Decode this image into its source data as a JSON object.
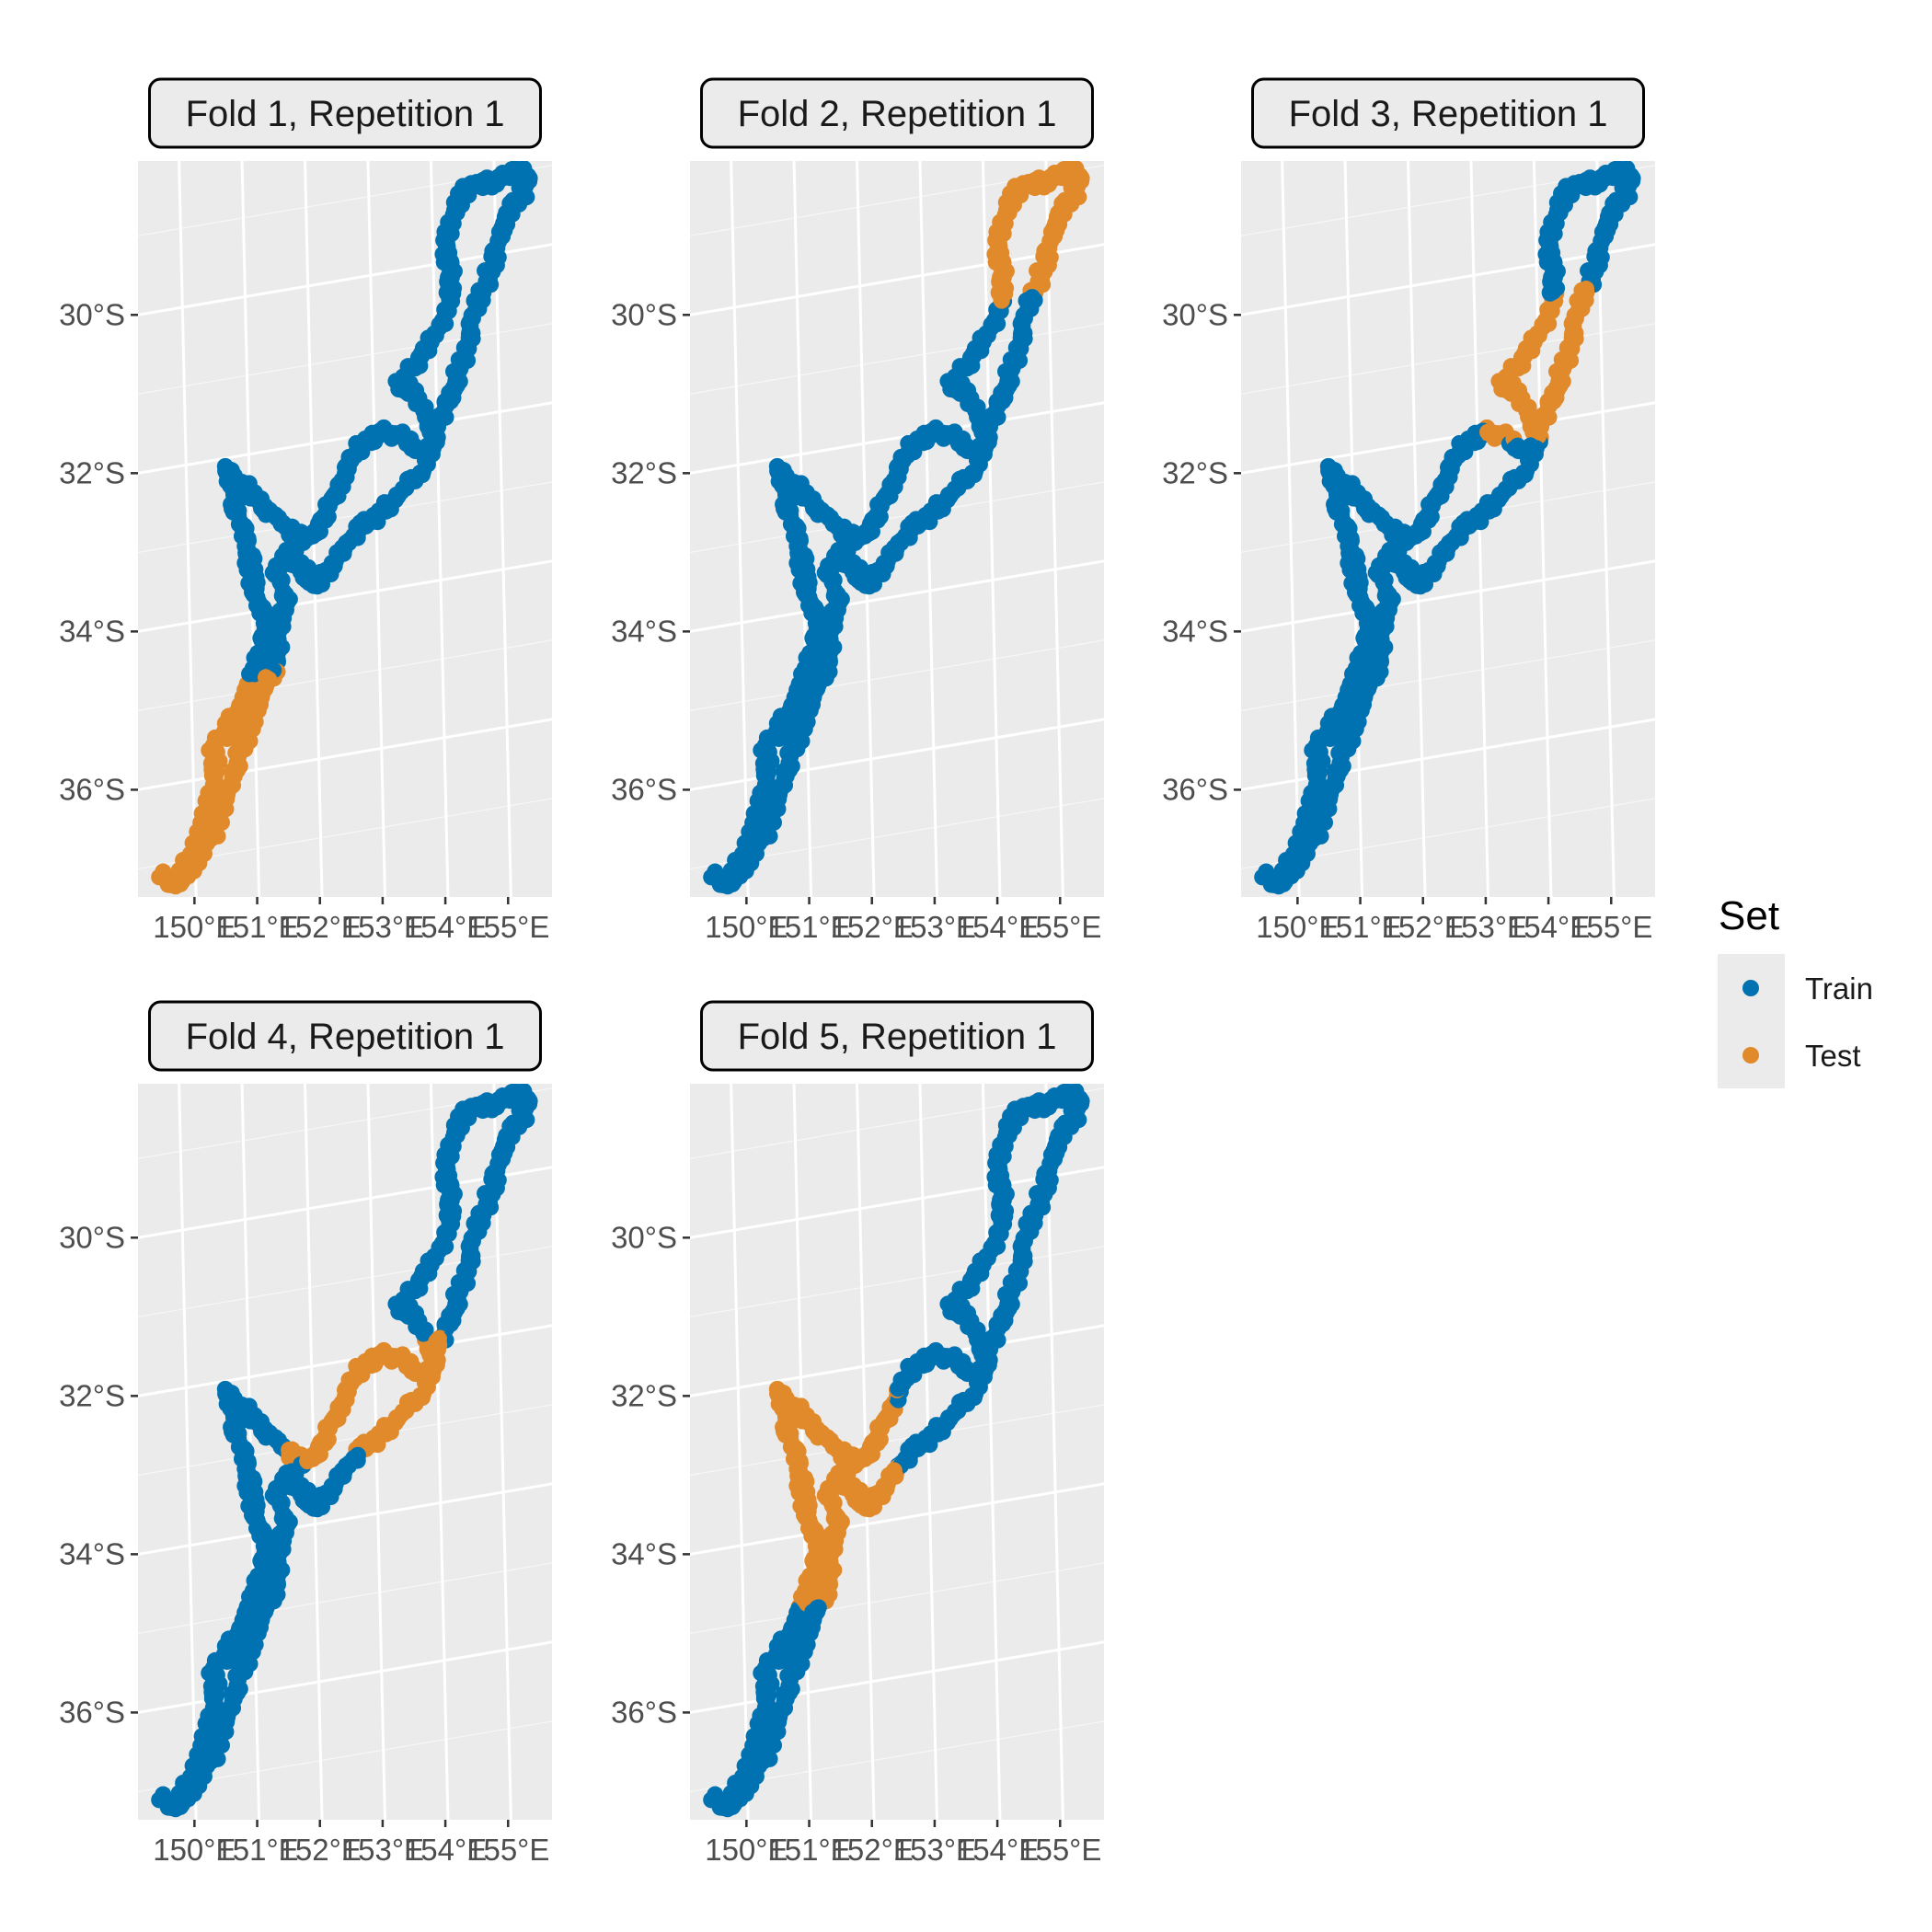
{
  "chart_data": {
    "type": "scatter",
    "subtype": "faceted map of spatial cross-validation folds",
    "coordinate_system": "projected lon/lat (graticule slightly rotated)",
    "xlim": [
      149.1,
      155.7
    ],
    "ylim": [
      -37.8,
      -28.5
    ],
    "x_ticks": [
      150,
      151,
      152,
      153,
      154,
      155
    ],
    "x_tick_labels": [
      "150°E",
      "151°E",
      "152°E",
      "153°E",
      "154°E",
      "155°E"
    ],
    "y_ticks": [
      -30,
      -32,
      -34,
      -36
    ],
    "y_tick_labels": [
      "30°S",
      "32°S",
      "34°S",
      "36°S"
    ],
    "grid": true,
    "panel_background": "#ebebeb",
    "legend": {
      "title": "Set",
      "position": "right",
      "items": [
        {
          "label": "Train",
          "color": "#0072b2"
        },
        {
          "label": "Test",
          "color": "#e08a2c"
        }
      ]
    },
    "facets": [
      {
        "label": "Fold 1, Repetition 1",
        "test_lat_range": [
          -37.4,
          -34.8
        ]
      },
      {
        "label": "Fold 2, Repetition 1",
        "test_lat_range": [
          -30.5,
          -28.9
        ]
      },
      {
        "label": "Fold 3, Repetition 1",
        "test_lat_range": [
          -32.2,
          -30.4
        ]
      },
      {
        "label": "Fold 4, Repetition 1",
        "test_region": "lat -33.2 to -31.9, lon 151.5 to 154.0"
      },
      {
        "label": "Fold 5, Repetition 1",
        "test_region": "lat -34.9 to -32.1, lon 150.4 to 152.4"
      }
    ],
    "point_track": [
      [
        149.5,
        -37.15
      ],
      [
        149.7,
        -37.3
      ],
      [
        149.85,
        -37.1
      ],
      [
        150.0,
        -36.85
      ],
      [
        150.15,
        -36.55
      ],
      [
        150.25,
        -36.25
      ],
      [
        150.35,
        -35.95
      ],
      [
        150.3,
        -35.6
      ],
      [
        150.5,
        -35.45
      ],
      [
        150.7,
        -35.2
      ],
      [
        150.85,
        -34.95
      ],
      [
        151.0,
        -34.7
      ],
      [
        151.1,
        -34.45
      ],
      [
        151.15,
        -34.2
      ],
      [
        151.05,
        -33.95
      ],
      [
        150.95,
        -33.7
      ],
      [
        150.9,
        -33.45
      ],
      [
        150.85,
        -33.2
      ],
      [
        150.75,
        -32.9
      ],
      [
        150.65,
        -32.6
      ],
      [
        150.6,
        -32.35
      ],
      [
        150.55,
        -32.15
      ],
      [
        150.9,
        -32.5
      ],
      [
        151.2,
        -32.75
      ],
      [
        151.45,
        -33.0
      ],
      [
        151.7,
        -33.2
      ],
      [
        151.9,
        -33.15
      ],
      [
        152.1,
        -32.9
      ],
      [
        152.3,
        -32.6
      ],
      [
        152.5,
        -32.3
      ],
      [
        152.7,
        -32.1
      ],
      [
        152.95,
        -32.0
      ],
      [
        153.2,
        -32.05
      ],
      [
        153.45,
        -32.2
      ],
      [
        153.7,
        -32.4
      ],
      [
        153.85,
        -32.2
      ],
      [
        153.7,
        -31.9
      ],
      [
        153.5,
        -31.6
      ],
      [
        153.25,
        -31.4
      ],
      [
        153.55,
        -31.2
      ],
      [
        153.85,
        -30.9
      ],
      [
        154.05,
        -30.55
      ],
      [
        154.1,
        -30.2
      ],
      [
        154.0,
        -29.9
      ],
      [
        154.05,
        -29.6
      ],
      [
        154.15,
        -29.35
      ],
      [
        154.3,
        -29.15
      ],
      [
        154.5,
        -29.05
      ],
      [
        154.7,
        -29.1
      ],
      [
        154.95,
        -29.05
      ],
      [
        155.15,
        -29.0
      ],
      [
        155.3,
        -29.1
      ],
      [
        155.2,
        -29.35
      ],
      [
        154.95,
        -29.55
      ],
      [
        154.85,
        -29.85
      ],
      [
        154.75,
        -30.15
      ],
      [
        154.55,
        -30.5
      ],
      [
        154.4,
        -30.85
      ],
      [
        154.35,
        -31.15
      ],
      [
        154.2,
        -31.45
      ],
      [
        154.05,
        -31.75
      ],
      [
        153.9,
        -32.0
      ],
      [
        153.6,
        -32.6
      ],
      [
        153.3,
        -32.8
      ],
      [
        153.0,
        -33.0
      ],
      [
        152.7,
        -33.15
      ],
      [
        152.4,
        -33.35
      ],
      [
        152.2,
        -33.6
      ],
      [
        151.9,
        -33.8
      ],
      [
        151.7,
        -33.55
      ],
      [
        151.5,
        -33.3
      ],
      [
        151.3,
        -33.5
      ],
      [
        151.45,
        -33.9
      ],
      [
        151.35,
        -34.3
      ],
      [
        151.3,
        -34.7
      ],
      [
        151.15,
        -34.95
      ],
      [
        151.0,
        -35.2
      ],
      [
        150.85,
        -35.5
      ],
      [
        150.7,
        -35.8
      ],
      [
        150.6,
        -36.1
      ],
      [
        150.45,
        -36.4
      ],
      [
        150.3,
        -36.7
      ],
      [
        150.1,
        -36.95
      ],
      [
        149.9,
        -37.2
      ]
    ]
  }
}
